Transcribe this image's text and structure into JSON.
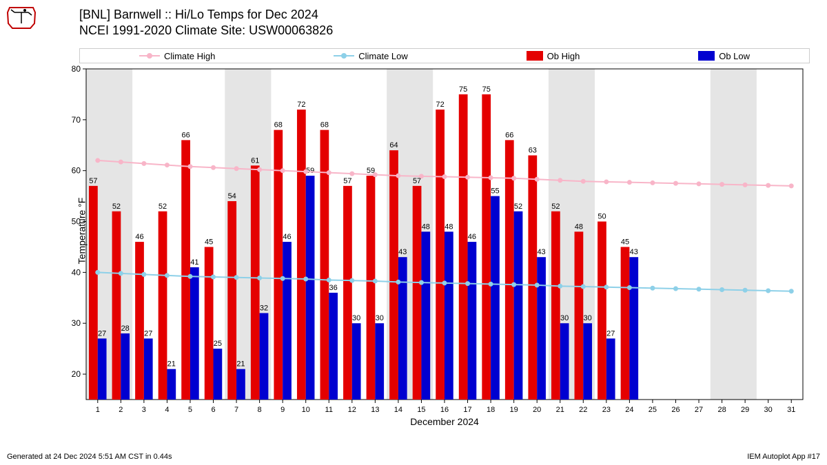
{
  "title_line1": "[BNL] Barnwell :: Hi/Lo Temps for Dec 2024",
  "title_line2": "NCEI 1991-2020 Climate Site: USW00063826",
  "footer_left": "Generated at 24 Dec 2024 5:51 AM CST in 0.44s",
  "footer_right": "IEM Autoplot App #17",
  "legend": {
    "climate_high": "Climate High",
    "climate_low": "Climate Low",
    "ob_high": "Ob High",
    "ob_low": "Ob Low"
  },
  "chart": {
    "type": "bar+line",
    "xlabel": "December 2024",
    "ylabel": "Temperature °F",
    "ylim": [
      15,
      80
    ],
    "ytick_step": 10,
    "days": [
      1,
      2,
      3,
      4,
      5,
      6,
      7,
      8,
      9,
      10,
      11,
      12,
      13,
      14,
      15,
      16,
      17,
      18,
      19,
      20,
      21,
      22,
      23,
      24,
      25,
      26,
      27,
      28,
      29,
      30,
      31
    ],
    "ob_high": [
      57,
      52,
      46,
      52,
      66,
      45,
      54,
      61,
      68,
      72,
      68,
      57,
      59,
      64,
      57,
      72,
      75,
      75,
      66,
      63,
      52,
      48,
      50,
      45,
      null,
      null,
      null,
      null,
      null,
      null,
      null
    ],
    "ob_low": [
      27,
      28,
      27,
      21,
      41,
      25,
      21,
      32,
      46,
      59,
      36,
      30,
      30,
      43,
      48,
      48,
      46,
      55,
      52,
      43,
      30,
      30,
      27,
      43,
      null,
      null,
      null,
      null,
      null,
      null,
      null
    ],
    "climate_high": [
      62,
      61.7,
      61.4,
      61.1,
      60.8,
      60.6,
      60.4,
      60.2,
      60,
      59.8,
      59.6,
      59.4,
      59.2,
      59,
      58.9,
      58.8,
      58.7,
      58.6,
      58.5,
      58.3,
      58.1,
      57.9,
      57.8,
      57.7,
      57.6,
      57.5,
      57.4,
      57.3,
      57.2,
      57.1,
      57
    ],
    "climate_low": [
      40,
      39.8,
      39.6,
      39.4,
      39.2,
      39.1,
      39,
      38.9,
      38.8,
      38.7,
      38.5,
      38.4,
      38.3,
      38.1,
      38,
      37.9,
      37.8,
      37.7,
      37.6,
      37.5,
      37.3,
      37.2,
      37.1,
      37,
      36.9,
      36.8,
      36.7,
      36.6,
      36.5,
      36.4,
      36.3
    ],
    "weekend_bands": [
      [
        1,
        2
      ],
      [
        7,
        8
      ],
      [
        14,
        15
      ],
      [
        21,
        22
      ],
      [
        28,
        29
      ]
    ],
    "colors": {
      "ob_high": "#e40000",
      "ob_low": "#0000d0",
      "climate_high": "#f8b5c8",
      "climate_low": "#8dd0e8",
      "weekend": "#e5e5e5",
      "grid": "#000000",
      "background": "#ffffff"
    },
    "bar_width": 0.38,
    "label_fontsize": 12,
    "title_fontsize": 18
  }
}
